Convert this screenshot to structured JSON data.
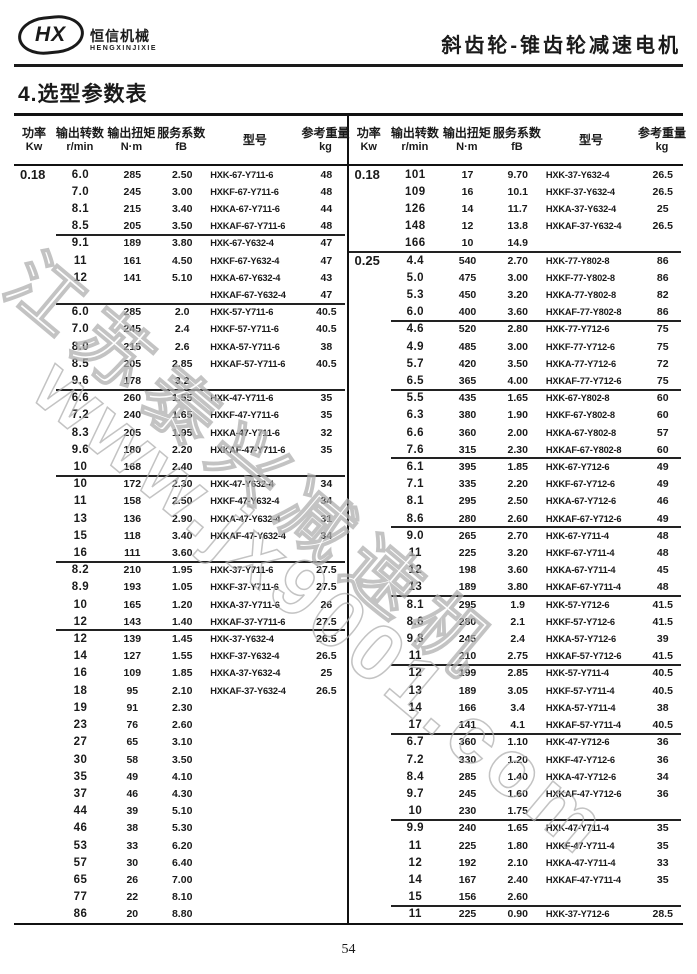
{
  "colors": {
    "text": "#1a1a1a",
    "watermark": "#c0c0c0"
  },
  "header": {
    "logo_hx": "HX",
    "logo_cn": "恒信机械",
    "logo_en": "HENGXINJIXIE",
    "title": "斜齿轮-锥齿轮减速电机"
  },
  "section_title": "4.选型参数表",
  "watermark": {
    "line1": "江苏泰兴减速机",
    "line2": "www.jx9001.com"
  },
  "page_number": "54",
  "table": {
    "columns": [
      {
        "cn": "功率",
        "unit": "Kw"
      },
      {
        "cn": "输出转数",
        "unit": "r/min"
      },
      {
        "cn": "输出扭矩",
        "unit": "N·m"
      },
      {
        "cn": "服务系数",
        "unit": "fB"
      },
      {
        "cn": "型号",
        "unit": ""
      },
      {
        "cn": "参考重量",
        "unit": "kg"
      }
    ],
    "left_rows": [
      {
        "power": "0.18",
        "rpm": "6.0",
        "torque": "285",
        "fb": "2.50",
        "model": "HXK-67-Y711-6",
        "weight": "48"
      },
      {
        "rpm": "7.0",
        "torque": "245",
        "fb": "3.00",
        "model": "HXKF-67-Y711-6",
        "weight": "48"
      },
      {
        "rpm": "8.1",
        "torque": "215",
        "fb": "3.40",
        "model": "HXKA-67-Y711-6",
        "weight": "44"
      },
      {
        "rpm": "8.5",
        "torque": "205",
        "fb": "3.50",
        "model": "HXKAF-67-Y711-6",
        "weight": "48"
      },
      {
        "sep": true,
        "rpm": "9.1",
        "torque": "189",
        "fb": "3.80",
        "model": "HXK-67-Y632-4",
        "weight": "47"
      },
      {
        "rpm": "11",
        "torque": "161",
        "fb": "4.50",
        "model": "HXKF-67-Y632-4",
        "weight": "47"
      },
      {
        "rpm": "12",
        "torque": "141",
        "fb": "5.10",
        "model": "HXKA-67-Y632-4",
        "weight": "43"
      },
      {
        "model": "HXKAF-67-Y632-4",
        "weight": "47"
      },
      {
        "sep": true,
        "rpm": "6.0",
        "torque": "285",
        "fb": "2.0",
        "model": "HXK-57-Y711-6",
        "weight": "40.5"
      },
      {
        "rpm": "7.0",
        "torque": "245",
        "fb": "2.4",
        "model": "HXKF-57-Y711-6",
        "weight": "40.5"
      },
      {
        "rpm": "8.0",
        "torque": "215",
        "fb": "2.6",
        "model": "HXKA-57-Y711-6",
        "weight": "38"
      },
      {
        "rpm": "8.5",
        "torque": "205",
        "fb": "2.85",
        "model": "HXKAF-57-Y711-6",
        "weight": "40.5"
      },
      {
        "rpm": "9.6",
        "torque": "178",
        "fb": "3.2"
      },
      {
        "sep": true,
        "rpm": "6.6",
        "torque": "260",
        "fb": "1.55",
        "model": "HXK-47-Y711-6",
        "weight": "35"
      },
      {
        "rpm": "7.2",
        "torque": "240",
        "fb": "1.65",
        "model": "HXKF-47-Y711-6",
        "weight": "35"
      },
      {
        "rpm": "8.3",
        "torque": "205",
        "fb": "1.95",
        "model": "HXKA-47-Y711-6",
        "weight": "32"
      },
      {
        "rpm": "9.6",
        "torque": "180",
        "fb": "2.20",
        "model": "HXKAF-47-Y711-6",
        "weight": "35"
      },
      {
        "rpm": "10",
        "torque": "168",
        "fb": "2.40"
      },
      {
        "sep": true,
        "rpm": "10",
        "torque": "172",
        "fb": "2.30",
        "model": "HXK-47-Y632-4",
        "weight": "34"
      },
      {
        "rpm": "11",
        "torque": "158",
        "fb": "2.50",
        "model": "HXKF-47-Y632-4",
        "weight": "34"
      },
      {
        "rpm": "13",
        "torque": "136",
        "fb": "2.90",
        "model": "HXKA-47-Y632-4",
        "weight": "31"
      },
      {
        "rpm": "15",
        "torque": "118",
        "fb": "3.40",
        "model": "HXKAF-47-Y632-4",
        "weight": "34"
      },
      {
        "rpm": "16",
        "torque": "111",
        "fb": "3.60"
      },
      {
        "sep": true,
        "rpm": "8.2",
        "torque": "210",
        "fb": "1.95",
        "model": "HXK-37-Y711-6",
        "weight": "27.5"
      },
      {
        "rpm": "8.9",
        "torque": "193",
        "fb": "1.05",
        "model": "HXKF-37-Y711-6",
        "weight": "27.5"
      },
      {
        "rpm": "10",
        "torque": "165",
        "fb": "1.20",
        "model": "HXKA-37-Y711-6",
        "weight": "26"
      },
      {
        "rpm": "12",
        "torque": "143",
        "fb": "1.40",
        "model": "HXKAF-37-Y711-6",
        "weight": "27.5"
      },
      {
        "sep": true,
        "rpm": "12",
        "torque": "139",
        "fb": "1.45",
        "model": "HXK-37-Y632-4",
        "weight": "26.5"
      },
      {
        "rpm": "14",
        "torque": "127",
        "fb": "1.55",
        "model": "HXKF-37-Y632-4",
        "weight": "26.5"
      },
      {
        "rpm": "16",
        "torque": "109",
        "fb": "1.85",
        "model": "HXKA-37-Y632-4",
        "weight": "25"
      },
      {
        "rpm": "18",
        "torque": "95",
        "fb": "2.10",
        "model": "HXKAF-37-Y632-4",
        "weight": "26.5"
      },
      {
        "rpm": "19",
        "torque": "91",
        "fb": "2.30"
      },
      {
        "rpm": "23",
        "torque": "76",
        "fb": "2.60"
      },
      {
        "rpm": "27",
        "torque": "65",
        "fb": "3.10"
      },
      {
        "rpm": "30",
        "torque": "58",
        "fb": "3.50"
      },
      {
        "rpm": "35",
        "torque": "49",
        "fb": "4.10"
      },
      {
        "rpm": "37",
        "torque": "46",
        "fb": "4.30"
      },
      {
        "rpm": "44",
        "torque": "39",
        "fb": "5.10"
      },
      {
        "rpm": "46",
        "torque": "38",
        "fb": "5.30"
      },
      {
        "rpm": "53",
        "torque": "33",
        "fb": "6.20"
      },
      {
        "rpm": "57",
        "torque": "30",
        "fb": "6.40"
      },
      {
        "rpm": "65",
        "torque": "26",
        "fb": "7.00"
      },
      {
        "rpm": "77",
        "torque": "22",
        "fb": "8.10"
      },
      {
        "rpm": "86",
        "torque": "20",
        "fb": "8.80"
      }
    ],
    "right_rows": [
      {
        "power": "0.18",
        "rpm": "101",
        "torque": "17",
        "fb": "9.70",
        "model": "HXK-37-Y632-4",
        "weight": "26.5"
      },
      {
        "rpm": "109",
        "torque": "16",
        "fb": "10.1",
        "model": "HXKF-37-Y632-4",
        "weight": "26.5"
      },
      {
        "rpm": "126",
        "torque": "14",
        "fb": "11.7",
        "model": "HXKA-37-Y632-4",
        "weight": "25"
      },
      {
        "rpm": "148",
        "torque": "12",
        "fb": "13.8",
        "model": "HXKAF-37-Y632-4",
        "weight": "26.5"
      },
      {
        "rpm": "166",
        "torque": "10",
        "fb": "14.9"
      },
      {
        "sep_full": true,
        "power": "0.25",
        "rpm": "4.4",
        "torque": "540",
        "fb": "2.70",
        "model": "HXK-77-Y802-8",
        "weight": "86"
      },
      {
        "rpm": "5.0",
        "torque": "475",
        "fb": "3.00",
        "model": "HXKF-77-Y802-8",
        "weight": "86"
      },
      {
        "rpm": "5.3",
        "torque": "450",
        "fb": "3.20",
        "model": "HXKA-77-Y802-8",
        "weight": "82"
      },
      {
        "rpm": "6.0",
        "torque": "400",
        "fb": "3.60",
        "model": "HXKAF-77-Y802-8",
        "weight": "86"
      },
      {
        "sep": true,
        "rpm": "4.6",
        "torque": "520",
        "fb": "2.80",
        "model": "HXK-77-Y712-6",
        "weight": "75"
      },
      {
        "rpm": "4.9",
        "torque": "485",
        "fb": "3.00",
        "model": "HXKF-77-Y712-6",
        "weight": "75"
      },
      {
        "rpm": "5.7",
        "torque": "420",
        "fb": "3.50",
        "model": "HXKA-77-Y712-6",
        "weight": "72"
      },
      {
        "rpm": "6.5",
        "torque": "365",
        "fb": "4.00",
        "model": "HXKAF-77-Y712-6",
        "weight": "75"
      },
      {
        "sep": true,
        "rpm": "5.5",
        "torque": "435",
        "fb": "1.65",
        "model": "HXK-67-Y802-8",
        "weight": "60"
      },
      {
        "rpm": "6.3",
        "torque": "380",
        "fb": "1.90",
        "model": "HXKF-67-Y802-8",
        "weight": "60"
      },
      {
        "rpm": "6.6",
        "torque": "360",
        "fb": "2.00",
        "model": "HXKA-67-Y802-8",
        "weight": "57"
      },
      {
        "rpm": "7.6",
        "torque": "315",
        "fb": "2.30",
        "model": "HXKAF-67-Y802-8",
        "weight": "60"
      },
      {
        "sep": true,
        "rpm": "6.1",
        "torque": "395",
        "fb": "1.85",
        "model": "HXK-67-Y712-6",
        "weight": "49"
      },
      {
        "rpm": "7.1",
        "torque": "335",
        "fb": "2.20",
        "model": "HXKF-67-Y712-6",
        "weight": "49"
      },
      {
        "rpm": "8.1",
        "torque": "295",
        "fb": "2.50",
        "model": "HXKA-67-Y712-6",
        "weight": "46"
      },
      {
        "rpm": "8.6",
        "torque": "280",
        "fb": "2.60",
        "model": "HXKAF-67-Y712-6",
        "weight": "49"
      },
      {
        "sep": true,
        "rpm": "9.0",
        "torque": "265",
        "fb": "2.70",
        "model": "HXK-67-Y711-4",
        "weight": "48"
      },
      {
        "rpm": "11",
        "torque": "225",
        "fb": "3.20",
        "model": "HXKF-67-Y711-4",
        "weight": "48"
      },
      {
        "rpm": "12",
        "torque": "198",
        "fb": "3.60",
        "model": "HXKA-67-Y711-4",
        "weight": "45"
      },
      {
        "rpm": "13",
        "torque": "189",
        "fb": "3.80",
        "model": "HXKAF-67-Y711-4",
        "weight": "48"
      },
      {
        "sep": true,
        "rpm": "8.1",
        "torque": "295",
        "fb": "1.9",
        "model": "HXK-57-Y712-6",
        "weight": "41.5"
      },
      {
        "rpm": "8.6",
        "torque": "280",
        "fb": "2.1",
        "model": "HXKF-57-Y712-6",
        "weight": "41.5"
      },
      {
        "rpm": "9.8",
        "torque": "245",
        "fb": "2.4",
        "model": "HXKA-57-Y712-6",
        "weight": "39"
      },
      {
        "rpm": "11",
        "torque": "210",
        "fb": "2.75",
        "model": "HXKAF-57-Y712-6",
        "weight": "41.5"
      },
      {
        "sep": true,
        "rpm": "12",
        "torque": "199",
        "fb": "2.85",
        "model": "HXK-57-Y711-4",
        "weight": "40.5"
      },
      {
        "rpm": "13",
        "torque": "189",
        "fb": "3.05",
        "model": "HXKF-57-Y711-4",
        "weight": "40.5"
      },
      {
        "rpm": "14",
        "torque": "166",
        "fb": "3.4",
        "model": "HXKA-57-Y711-4",
        "weight": "38"
      },
      {
        "rpm": "17",
        "torque": "141",
        "fb": "4.1",
        "model": "HXKAF-57-Y711-4",
        "weight": "40.5"
      },
      {
        "sep": true,
        "rpm": "6.7",
        "torque": "360",
        "fb": "1.10",
        "model": "HXK-47-Y712-6",
        "weight": "36"
      },
      {
        "rpm": "7.2",
        "torque": "330",
        "fb": "1.20",
        "model": "HXKF-47-Y712-6",
        "weight": "36"
      },
      {
        "rpm": "8.4",
        "torque": "285",
        "fb": "1.40",
        "model": "HXKA-47-Y712-6",
        "weight": "34"
      },
      {
        "rpm": "9.7",
        "torque": "245",
        "fb": "1.60",
        "model": "HXKAF-47-Y712-6",
        "weight": "36"
      },
      {
        "rpm": "10",
        "torque": "230",
        "fb": "1.75"
      },
      {
        "sep": true,
        "rpm": "9.9",
        "torque": "240",
        "fb": "1.65",
        "model": "HXK-47-Y711-4",
        "weight": "35"
      },
      {
        "rpm": "11",
        "torque": "225",
        "fb": "1.80",
        "model": "HXKF-47-Y711-4",
        "weight": "35"
      },
      {
        "rpm": "12",
        "torque": "192",
        "fb": "2.10",
        "model": "HXKA-47-Y711-4",
        "weight": "33"
      },
      {
        "rpm": "14",
        "torque": "167",
        "fb": "2.40",
        "model": "HXKAF-47-Y711-4",
        "weight": "35"
      },
      {
        "rpm": "15",
        "torque": "156",
        "fb": "2.60"
      },
      {
        "sep": true,
        "rpm": "11",
        "torque": "225",
        "fb": "0.90",
        "model": "HXK-37-Y712-6",
        "weight": "28.5"
      }
    ]
  }
}
